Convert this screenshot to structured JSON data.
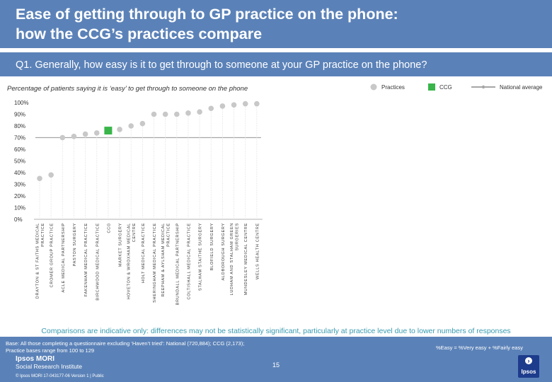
{
  "header": {
    "title_line1": "Ease of getting through to GP practice on the phone:",
    "title_line2": "how the CCG’s practices compare"
  },
  "question": "Q1. Generally, how easy is it to get through to someone at your GP practice on the phone?",
  "colors": {
    "header_bg": "#5b82b8",
    "practice_dot": "#c8c8c8",
    "ccg_marker": "#39b54a",
    "national_line": "#a6a6a6",
    "note_text": "#3a9bb0"
  },
  "chart_data": {
    "type": "scatter",
    "subtitle": "Percentage of patients saying it is ‘easy’ to get through to someone on the phone",
    "legend": [
      {
        "label": "Practices",
        "marker": "circle",
        "color": "#c8c8c8"
      },
      {
        "label": "CCG",
        "marker": "square",
        "color": "#39b54a"
      },
      {
        "label": "National average",
        "marker": "line",
        "color": "#a6a6a6"
      }
    ],
    "legend_position": "top-right",
    "y_ticks": [
      "0%",
      "10%",
      "20%",
      "30%",
      "40%",
      "50%",
      "60%",
      "70%",
      "80%",
      "90%",
      "100%"
    ],
    "ylim": [
      0,
      100
    ],
    "categories": [
      "DRAYTON & ST FAITHS MEDICAL PRACTICE",
      "CROMER GROUP PRACTICE",
      "ACLE MEDICAL PARTNERSHIP",
      "PASTON SURGERY",
      "FAKENHAM MEDICAL PRACTICE",
      "BIRCHWOOD MEDICAL PRACTICE",
      "CCG",
      "MARKET SURGERY",
      "HOVETON & WROXHAM MEDICAL CENTRE",
      "HOLT MEDICAL PRACTICE",
      "SHERINGHAM MEDICAL PRACTICE",
      "REEPHAM & AYLSHAM MEDICAL PRACTICE",
      "BRUNDALL MEDICAL PARTNERSHIP",
      "COLTISHALL MEDICAL PRACTICE",
      "STALHAM STAITHE SURGERY",
      "BLOFIELD SURGERY",
      "ALDBOROUGH SURGERY",
      "LUDHAM AND STALHAM GREEN SURGERIES",
      "MUNDESLEY MEDICAL CENTRE",
      "WELLS HEALTH CENTRE"
    ],
    "values": [
      35,
      38,
      70,
      71,
      73,
      74,
      76,
      77,
      80,
      82,
      90,
      90,
      90,
      91,
      92,
      95,
      97,
      98,
      99,
      99
    ],
    "ccg_index": 6,
    "national_average": 70
  },
  "note": "Comparisons are indicative only: differences may not be statistically significant, particularly at practice level due to lower numbers of responses",
  "footer": {
    "base_line1": "Base: All those completing a questionnaire excluding ‘Haven’t tried’: National (720,884); CCG (2,173);",
    "base_line2": "Practice bases range from 100 to 129",
    "easy_definition": "%Easy = %Very easy + %Fairly easy",
    "page_number": "15",
    "logo_line1": "Ipsos MORI",
    "logo_line2": "Social Research Institute",
    "copyright": "© Ipsos MORI      17-043177-06 Version 1 | Public",
    "ipsos_badge": "Ipsos"
  }
}
